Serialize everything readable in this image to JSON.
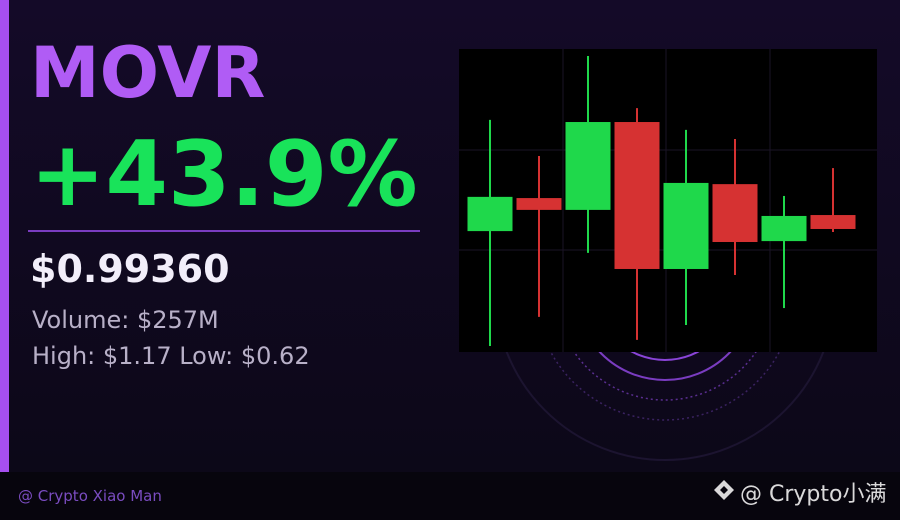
{
  "card": {
    "symbol": "MOVR",
    "change": "+43.9%",
    "price": "$0.99360",
    "volume": "Volume: $257M",
    "range": "High: $1.17 Low: $0.62",
    "footer": "@ Crypto Xiao Man",
    "watermark": "@ Crypto小满"
  },
  "chart_data": {
    "type": "candlestick",
    "open": [
      39.9,
      50.8,
      46.9,
      75.9,
      27.4,
      55.4,
      36.6,
      45.2
    ],
    "high": [
      76.6,
      64.7,
      97.7,
      80.5,
      73.3,
      70.3,
      51.5,
      60.7
    ],
    "low": [
      2.0,
      11.6,
      32.7,
      4.0,
      8.9,
      25.4,
      14.5,
      39.6
    ],
    "close": [
      51.2,
      46.9,
      75.9,
      27.4,
      55.8,
      36.3,
      44.9,
      40.6
    ],
    "ylim": [
      0,
      100
    ],
    "grid": true,
    "up_color": "#1fd84b",
    "down_color": "#d63232"
  }
}
